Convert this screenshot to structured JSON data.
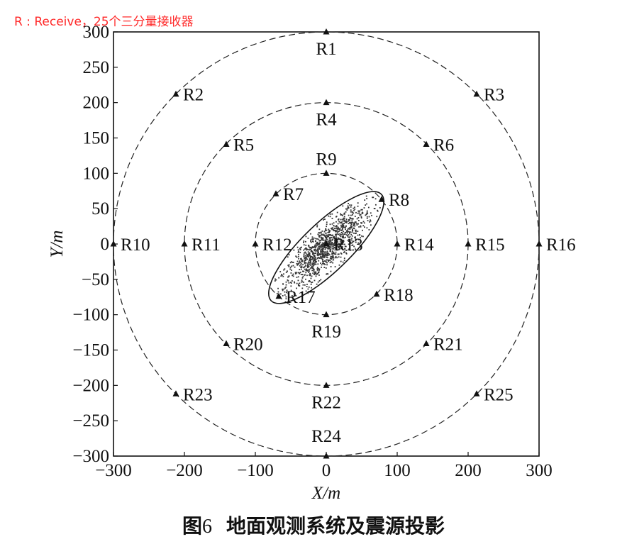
{
  "note": "R : Receive，25个三分量接收器",
  "caption": {
    "prefix": "图",
    "number": "6",
    "title": "地面观测系统及震源投影"
  },
  "chart_data": {
    "type": "scatter",
    "xlabel": "X/m",
    "ylabel": "Y/m",
    "xlim": [
      -300,
      300
    ],
    "ylim": [
      -300,
      300
    ],
    "xticks": [
      -300,
      -200,
      -100,
      0,
      100,
      200,
      300
    ],
    "yticks": [
      -300,
      -250,
      -200,
      -150,
      -100,
      -50,
      0,
      50,
      100,
      150,
      200,
      250,
      300
    ],
    "grid": false,
    "circles": [
      {
        "radius": 100,
        "style": "dashed"
      },
      {
        "radius": 200,
        "style": "dashed"
      },
      {
        "radius": 300,
        "style": "dashed"
      }
    ],
    "receivers": [
      {
        "name": "R1",
        "x": 0,
        "y": 300
      },
      {
        "name": "R2",
        "x": -212,
        "y": 212
      },
      {
        "name": "R3",
        "x": 212,
        "y": 212
      },
      {
        "name": "R4",
        "x": 0,
        "y": 200
      },
      {
        "name": "R5",
        "x": -141,
        "y": 141
      },
      {
        "name": "R6",
        "x": 141,
        "y": 141
      },
      {
        "name": "R7",
        "x": -71,
        "y": 71
      },
      {
        "name": "R8",
        "x": 78,
        "y": 63
      },
      {
        "name": "R9",
        "x": 0,
        "y": 100
      },
      {
        "name": "R10",
        "x": -300,
        "y": 0
      },
      {
        "name": "R11",
        "x": -200,
        "y": 0
      },
      {
        "name": "R12",
        "x": -100,
        "y": 0
      },
      {
        "name": "R13",
        "x": 0,
        "y": 0
      },
      {
        "name": "R14",
        "x": 100,
        "y": 0
      },
      {
        "name": "R15",
        "x": 200,
        "y": 0
      },
      {
        "name": "R16",
        "x": 300,
        "y": 0
      },
      {
        "name": "R17",
        "x": -67,
        "y": -74
      },
      {
        "name": "R18",
        "x": 71,
        "y": -71
      },
      {
        "name": "R19",
        "x": 0,
        "y": -100
      },
      {
        "name": "R20",
        "x": -141,
        "y": -141
      },
      {
        "name": "R21",
        "x": 141,
        "y": -141
      },
      {
        "name": "R22",
        "x": 0,
        "y": -200
      },
      {
        "name": "R23",
        "x": -212,
        "y": -212
      },
      {
        "name": "R24",
        "x": 0,
        "y": -300
      },
      {
        "name": "R25",
        "x": 212,
        "y": -212
      }
    ],
    "source_projection": {
      "shape": "ellipse",
      "center": [
        0,
        -5
      ],
      "semi_major": 108,
      "semi_minor": 34,
      "angle_deg": 44,
      "point_count": 1200
    }
  }
}
